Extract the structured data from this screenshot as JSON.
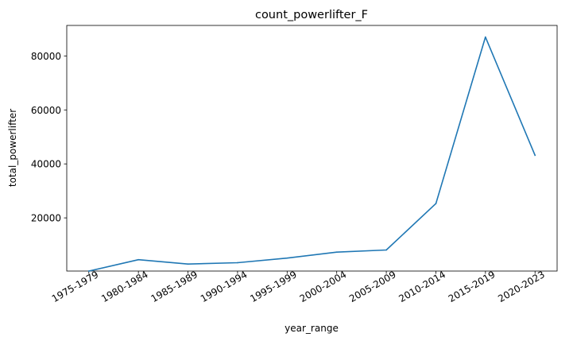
{
  "chart_data": {
    "type": "line",
    "title": "count_powerlifter_F",
    "xlabel": "year_range",
    "ylabel": "total_powerlifter",
    "categories": [
      "1975-1979",
      "1980-1984",
      "1985-1989",
      "1990-1994",
      "1995-1999",
      "2000-2004",
      "2005-2009",
      "2010-2014",
      "2015-2019",
      "2020-2023"
    ],
    "series": [
      {
        "values": [
          300,
          4500,
          2900,
          3400,
          5100,
          7300,
          8100,
          25300,
          87000,
          43200
        ],
        "color": "#1f77b4"
      }
    ],
    "ylim": [
      300,
      91300
    ],
    "yticks": [
      20000,
      40000,
      60000,
      80000
    ],
    "ytick_labels": [
      "20000",
      "40000",
      "60000",
      "80000"
    ],
    "xtick_rotation": -30,
    "grid": false,
    "legend": "none"
  }
}
